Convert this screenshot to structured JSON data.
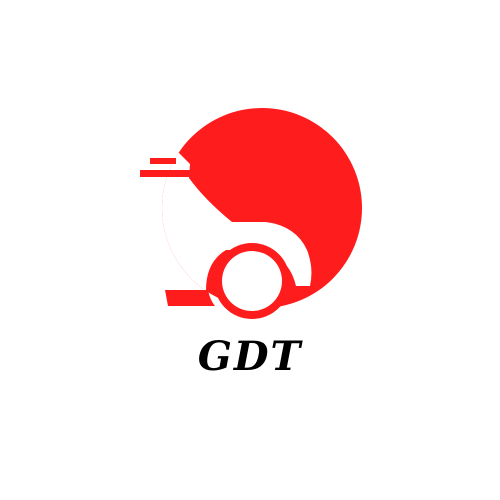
{
  "logo": {
    "brand_name": "GDT",
    "icon": "car-front-circle-icon",
    "colors": {
      "accent": "#ff1c1c",
      "text": "#000000",
      "background": "#ffffff"
    }
  }
}
